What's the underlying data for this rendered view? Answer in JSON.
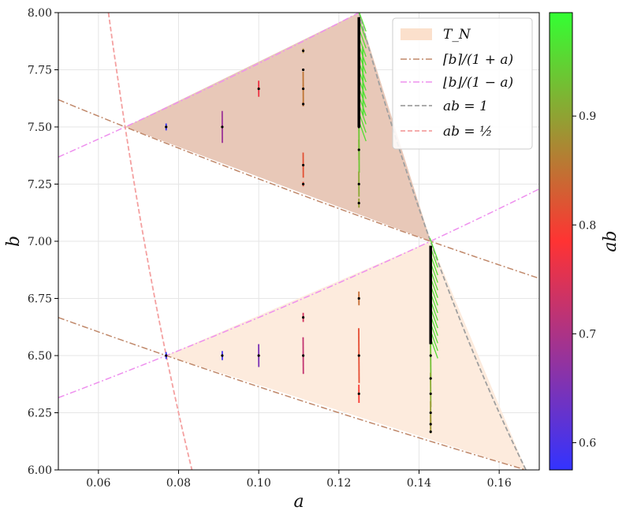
{
  "chart_data": {
    "type": "scatter",
    "title": "",
    "xlabel": "a",
    "ylabel": "b",
    "xlim": [
      0.05,
      0.17
    ],
    "ylim": [
      6.0,
      8.0
    ],
    "xticks": [
      "0.06",
      "0.08",
      "0.10",
      "0.12",
      "0.14",
      "0.16"
    ],
    "xtick_values": [
      0.06,
      0.08,
      0.1,
      0.12,
      0.14,
      0.16
    ],
    "yticks": [
      "6.00",
      "6.25",
      "6.50",
      "6.75",
      "7.00",
      "7.25",
      "7.50",
      "7.75",
      "8.00"
    ],
    "ytick_values": [
      6.0,
      6.25,
      6.5,
      6.75,
      7.0,
      7.25,
      7.5,
      7.75,
      8.0
    ],
    "grid": true,
    "legend_position": "top-right",
    "legend": [
      {
        "label": "T_N",
        "kind": "patch",
        "color": "#fbe0cc"
      },
      {
        "label": "⌈b⌉/(1 + a)",
        "kind": "dashdot",
        "color": "#c0886a"
      },
      {
        "label": "⌊b⌋/(1 − a)",
        "kind": "dashdot",
        "color": "#ee90ee"
      },
      {
        "label": "ab = 1",
        "kind": "dashed",
        "color": "#a0a0a0"
      },
      {
        "label": "ab = ½",
        "kind": "dashed",
        "color": "#f4a0a0"
      }
    ],
    "regions": [
      {
        "name": "T_N upper",
        "vertices": [
          [
            0.0667,
            7.5
          ],
          [
            0.125,
            8.0
          ],
          [
            0.1429,
            7.0
          ]
        ],
        "fill": "#e8c8b8"
      },
      {
        "name": "T_N lower",
        "vertices": [
          [
            0.0769,
            6.5
          ],
          [
            0.1429,
            7.0
          ],
          [
            0.1667,
            6.0
          ]
        ],
        "fill": "#fdebdd"
      }
    ],
    "curves": [
      {
        "name": "ceil_b_over_1_plus_a_upper",
        "ceil_b": 8,
        "color": "#c0886a"
      },
      {
        "name": "ceil_b_over_1_plus_a_lower",
        "ceil_b": 7,
        "color": "#c0886a"
      },
      {
        "name": "floor_b_over_1_minus_a_upper",
        "floor_b": 7,
        "color": "#ee90ee"
      },
      {
        "name": "floor_b_over_1_minus_a_lower",
        "floor_b": 6,
        "color": "#ee90ee"
      },
      {
        "name": "ab_equals_1",
        "product": 1.0,
        "color": "#a0a0a0"
      },
      {
        "name": "ab_equals_half",
        "product": 0.5,
        "color": "#f4a0a0"
      }
    ],
    "segments": [
      {
        "a": 0.0769,
        "b": 7.5,
        "len": 0.03,
        "ab": 0.577
      },
      {
        "a": 0.0909,
        "b": 7.5,
        "len": 0.14,
        "ab": 0.682
      },
      {
        "a": 0.1,
        "b": 7.667,
        "len": 0.07,
        "ab": 0.767
      },
      {
        "a": 0.1111,
        "b": 7.833,
        "len": 0.02,
        "ab": 0.87
      },
      {
        "a": 0.1111,
        "b": 7.667,
        "len": 0.15,
        "ab": 0.852
      },
      {
        "a": 0.1111,
        "b": 7.6,
        "len": 0.02,
        "ab": 0.844
      },
      {
        "a": 0.1111,
        "b": 7.333,
        "len": 0.11,
        "ab": 0.815
      },
      {
        "a": 0.1111,
        "b": 7.25,
        "len": 0.02,
        "ab": 0.806
      },
      {
        "a": 0.125,
        "b": 7.5,
        "len": 0.4,
        "ab": 0.937
      },
      {
        "a": 0.125,
        "b": 7.4,
        "len": 0.09,
        "ab": 0.925
      },
      {
        "a": 0.125,
        "b": 7.25,
        "len": 0.11,
        "ab": 0.906
      },
      {
        "a": 0.125,
        "b": 7.167,
        "len": 0.04,
        "ab": 0.896
      },
      {
        "a": 0.126,
        "b": 7.7,
        "len": 0.3,
        "ab": 0.97
      },
      {
        "a": 0.0769,
        "b": 6.5,
        "len": 0.03,
        "ab": 0.5
      },
      {
        "a": 0.0909,
        "b": 6.5,
        "len": 0.04,
        "ab": 0.591
      },
      {
        "a": 0.1,
        "b": 6.5,
        "len": 0.1,
        "ab": 0.65
      },
      {
        "a": 0.1111,
        "b": 6.667,
        "len": 0.04,
        "ab": 0.741
      },
      {
        "a": 0.1111,
        "b": 6.5,
        "len": 0.16,
        "ab": 0.722
      },
      {
        "a": 0.125,
        "b": 6.75,
        "len": 0.06,
        "ab": 0.844
      },
      {
        "a": 0.125,
        "b": 6.5,
        "len": 0.24,
        "ab": 0.812
      },
      {
        "a": 0.125,
        "b": 6.333,
        "len": 0.08,
        "ab": 0.792
      },
      {
        "a": 0.1429,
        "b": 6.5,
        "len": 0.2,
        "ab": 0.93
      },
      {
        "a": 0.1429,
        "b": 6.35,
        "len": 0.15,
        "ab": 0.907
      },
      {
        "a": 0.1429,
        "b": 6.25,
        "len": 0.1,
        "ab": 0.893
      },
      {
        "a": 0.1429,
        "b": 6.2,
        "len": 0.08,
        "ab": 0.886
      },
      {
        "a": 0.1429,
        "b": 6.7,
        "len": 0.25,
        "ab": 0.957
      },
      {
        "a": 0.1429,
        "b": 6.85,
        "len": 0.25,
        "ab": 0.979
      }
    ],
    "dots": [
      {
        "a": 0.0769,
        "b": 7.5
      },
      {
        "a": 0.0909,
        "b": 7.5
      },
      {
        "a": 0.1,
        "b": 7.667
      },
      {
        "a": 0.1111,
        "b": 7.833
      },
      {
        "a": 0.1111,
        "b": 7.75
      },
      {
        "a": 0.1111,
        "b": 7.667
      },
      {
        "a": 0.1111,
        "b": 7.6
      },
      {
        "a": 0.1111,
        "b": 7.333
      },
      {
        "a": 0.1111,
        "b": 7.25
      },
      {
        "a": 0.125,
        "b": 7.5
      },
      {
        "a": 0.125,
        "b": 7.4
      },
      {
        "a": 0.125,
        "b": 7.25
      },
      {
        "a": 0.125,
        "b": 7.167
      },
      {
        "a": 0.125,
        "b": 7.6
      },
      {
        "a": 0.125,
        "b": 7.7
      },
      {
        "a": 0.0769,
        "b": 6.5
      },
      {
        "a": 0.0909,
        "b": 6.5
      },
      {
        "a": 0.1,
        "b": 6.5
      },
      {
        "a": 0.1111,
        "b": 6.667
      },
      {
        "a": 0.1111,
        "b": 6.5
      },
      {
        "a": 0.125,
        "b": 6.75
      },
      {
        "a": 0.125,
        "b": 6.5
      },
      {
        "a": 0.125,
        "b": 6.333
      },
      {
        "a": 0.1429,
        "b": 6.5
      },
      {
        "a": 0.1429,
        "b": 6.4
      },
      {
        "a": 0.1429,
        "b": 6.333
      },
      {
        "a": 0.1429,
        "b": 6.25
      },
      {
        "a": 0.1429,
        "b": 6.2
      },
      {
        "a": 0.1429,
        "b": 6.167
      },
      {
        "a": 0.1429,
        "b": 6.6
      }
    ],
    "dense_columns": [
      {
        "a": 0.125,
        "b_from": 7.5,
        "b_to": 7.98
      },
      {
        "a": 0.1429,
        "b_from": 6.55,
        "b_to": 6.98
      }
    ],
    "colorbar": {
      "label": "ab",
      "range": [
        0.575,
        0.995
      ],
      "ticks": [
        "0.6",
        "0.7",
        "0.8",
        "0.9"
      ],
      "tick_values": [
        0.6,
        0.7,
        0.8,
        0.9
      ],
      "stops": [
        "#3333ff",
        "#ff3333",
        "#33ff33"
      ]
    }
  }
}
